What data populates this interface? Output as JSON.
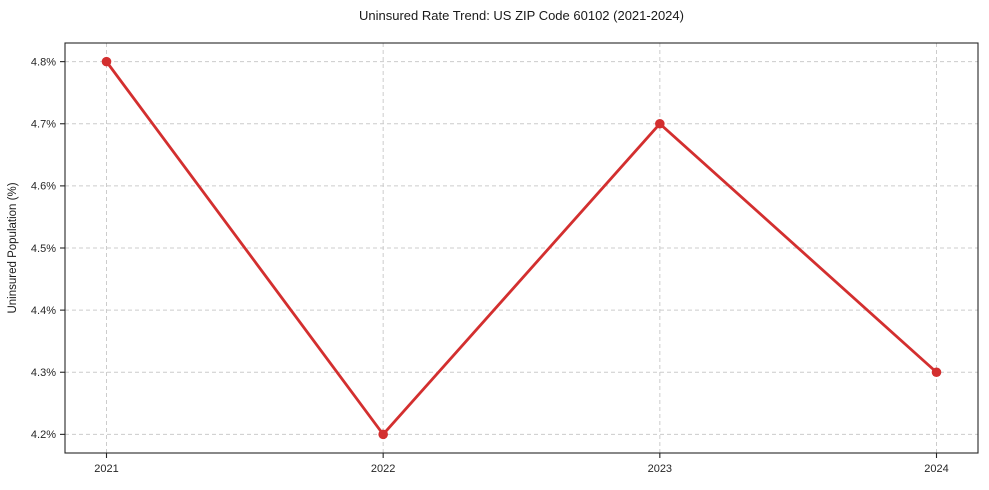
{
  "chart_data": {
    "type": "line",
    "title": "Uninsured Rate Trend: US ZIP Code 60102 (2021-2024)",
    "xlabel": "",
    "ylabel": "Uninsured Population (%)",
    "x": [
      2021,
      2022,
      2023,
      2024
    ],
    "x_tick_labels": [
      "2021",
      "2022",
      "2023",
      "2024"
    ],
    "series": [
      {
        "name": "Uninsured Rate",
        "values": [
          4.8,
          4.2,
          4.7,
          4.3
        ]
      }
    ],
    "y_ticks": [
      4.2,
      4.3,
      4.4,
      4.5,
      4.6,
      4.7,
      4.8
    ],
    "y_tick_labels": [
      "4.2%",
      "4.3%",
      "4.4%",
      "4.5%",
      "4.6%",
      "4.7%",
      "4.8%"
    ],
    "xlim": [
      2020.85,
      2024.15
    ],
    "ylim": [
      4.17,
      4.83
    ],
    "grid": true,
    "grid_style": "dashed",
    "legend_position": "none",
    "line_color": "#d32f2f",
    "marker": "circle",
    "grid_color": "#cccccc",
    "spine_color": "#262626",
    "text_color": "#262626",
    "background_color": "#ffffff"
  }
}
